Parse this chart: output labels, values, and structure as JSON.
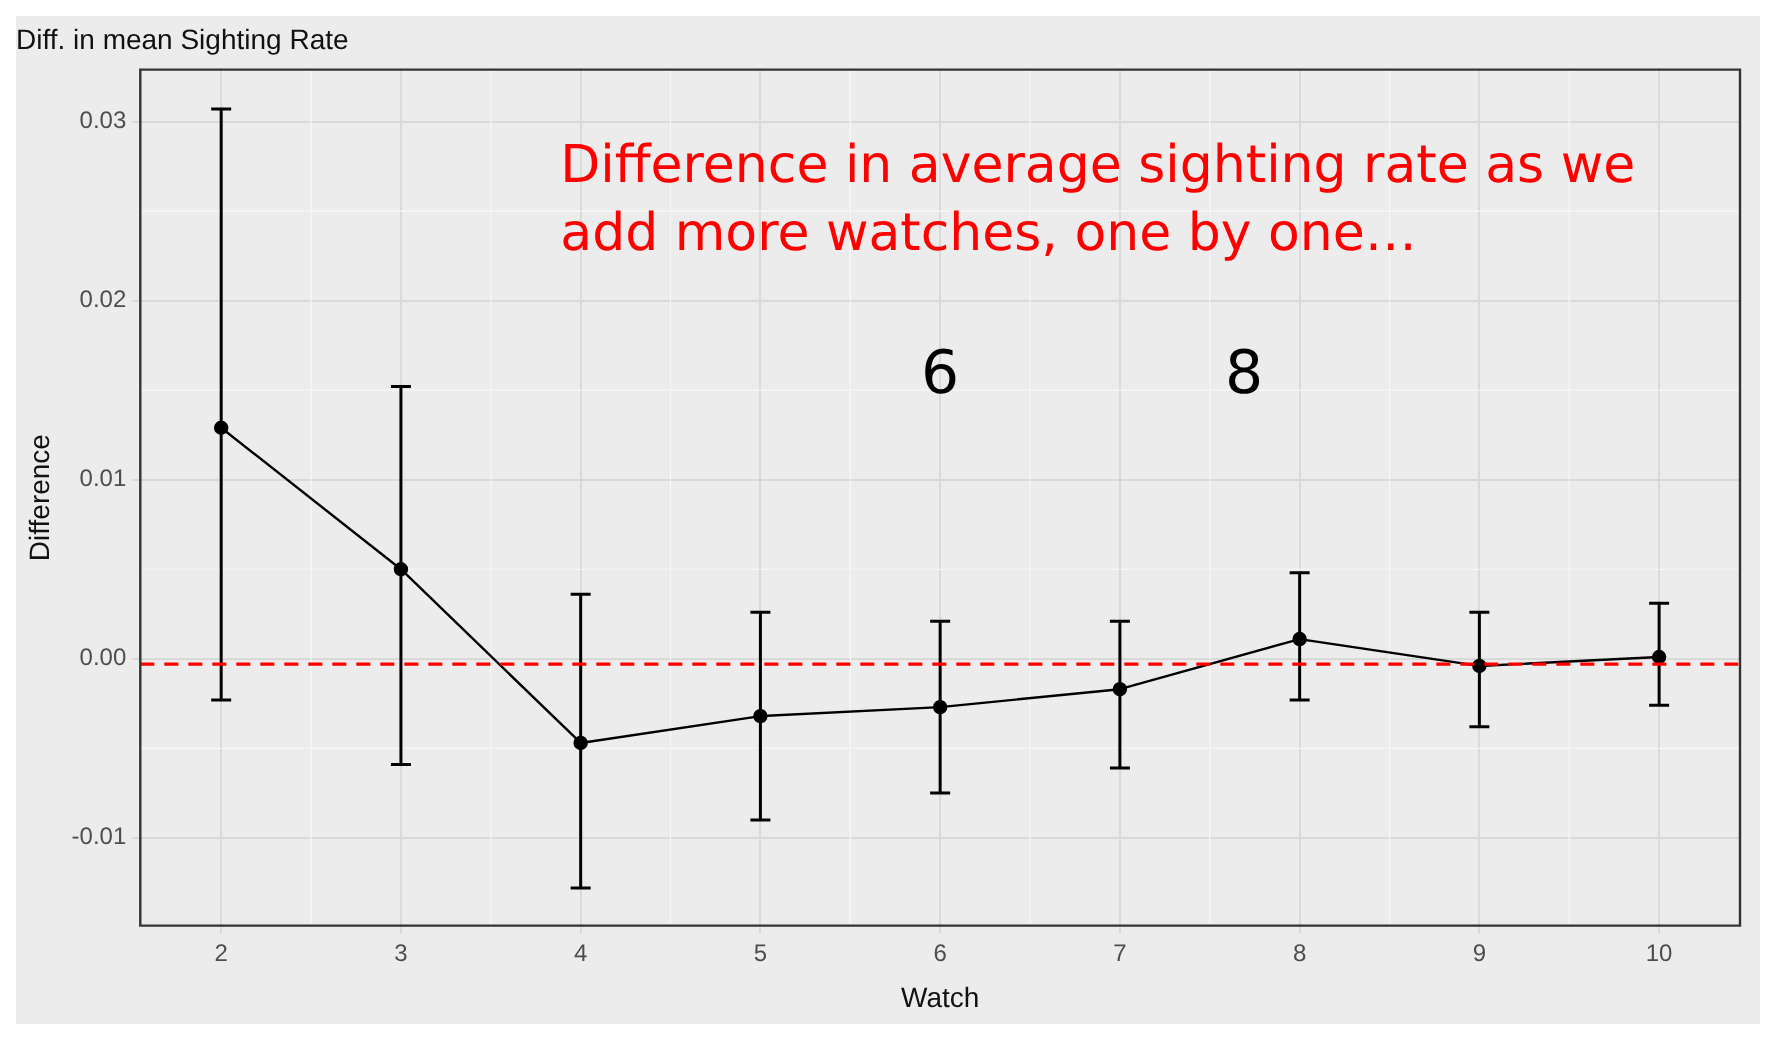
{
  "chart_data": {
    "type": "line",
    "title": "Diff. in mean Sighting Rate",
    "xlabel": "Watch",
    "ylabel": "Difference",
    "x": [
      2,
      3,
      4,
      5,
      6,
      7,
      8,
      9,
      10
    ],
    "series": [
      {
        "color": "#000000",
        "values": [
          0.0129,
          0.005,
          -0.0047,
          -0.0032,
          -0.0027,
          -0.0017,
          0.0011,
          -0.0004,
          0.0001
        ],
        "errors": [
          [
            -0.0023,
            0.0307
          ],
          [
            -0.0059,
            0.0152
          ],
          [
            -0.0128,
            0.0036
          ],
          [
            -0.009,
            0.0026
          ],
          [
            -0.0075,
            0.0021
          ],
          [
            -0.0061,
            0.0021
          ],
          [
            -0.0023,
            0.0048
          ],
          [
            -0.0038,
            0.0026
          ],
          [
            -0.0026,
            0.0031
          ]
        ]
      }
    ],
    "xlim": [
      1.55,
      10.45
    ],
    "xticks": [
      2,
      3,
      4,
      5,
      6,
      7,
      8,
      9,
      10
    ],
    "ylim": [
      -0.0149,
      0.0329
    ],
    "yticks": [
      {
        "value": -0.01,
        "label": "-0.01"
      },
      {
        "value": 0,
        "label": "0.00"
      },
      {
        "value": 0.01,
        "label": "0.01"
      },
      {
        "value": 0.02,
        "label": "0.02"
      },
      {
        "value": 0.03,
        "label": "0.03"
      }
    ],
    "ref_lines": [
      {
        "axis": "y",
        "value": -0.0003,
        "color": "#ff0000",
        "line_style": "dashed"
      }
    ],
    "annotations": [
      "Difference in average sighting rate as we add more watches, one by one…",
      "6",
      "8"
    ],
    "grid": true,
    "legend": false,
    "marker": "circle",
    "line_style": "solid"
  }
}
